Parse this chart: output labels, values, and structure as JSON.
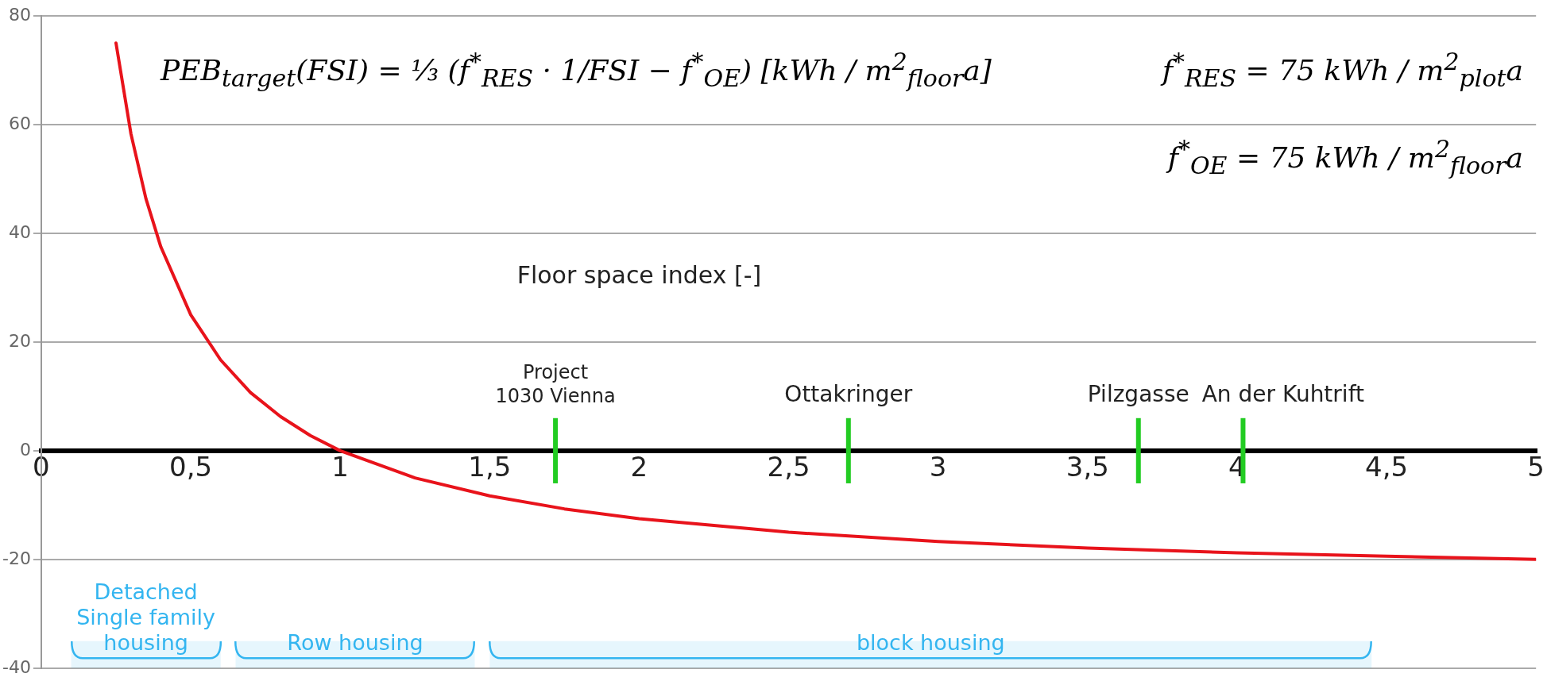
{
  "chart_data": {
    "type": "line",
    "xlabel": "Floor space index [-]",
    "series": [
      {
        "color": "#e8131b",
        "x": [
          0.25,
          0.3,
          0.35,
          0.4,
          0.5,
          0.6,
          0.7,
          0.8,
          0.9,
          1,
          1.25,
          1.5,
          1.75,
          2,
          2.5,
          3,
          3.5,
          4,
          4.5,
          5
        ],
        "values": [
          75,
          58.3,
          46.4,
          37.5,
          25,
          16.7,
          10.7,
          6.3,
          2.8,
          0,
          -5,
          -8.3,
          -10.7,
          -12.5,
          -15,
          -16.7,
          -17.9,
          -18.8,
          -19.4,
          -20
        ]
      }
    ],
    "xlim": [
      0,
      5
    ],
    "xticks": [
      0,
      {
        "value": 0.5,
        "label": "0,5"
      },
      1,
      {
        "value": 1.5,
        "label": "1,5"
      },
      2,
      {
        "value": 2.5,
        "label": "2,5"
      },
      3,
      {
        "value": 3.5,
        "label": "3,5"
      },
      4,
      {
        "value": 4.5,
        "label": "4,5"
      },
      5
    ],
    "ylim": [
      -40,
      80
    ],
    "yticks": [
      -40,
      -20,
      0,
      20,
      40,
      60,
      80
    ],
    "grid": "y",
    "legend": false,
    "marker": "none",
    "line_style": "solid",
    "ref_lines": [
      {
        "axis": "x",
        "value": 1.72,
        "label": "Project\n1030 Vienna",
        "color": "#22cc22"
      },
      {
        "axis": "x",
        "value": 2.7,
        "label": "Ottakringer",
        "color": "#22cc22"
      },
      {
        "axis": "x",
        "value": 3.67,
        "label": "Pilzgasse",
        "color": "#22cc22"
      },
      {
        "axis": "x",
        "value": 4.02,
        "label": "An der Kuhtrift",
        "color": "#22cc22"
      }
    ],
    "bands": [
      {
        "axis": "x",
        "from": 0.1,
        "to": 0.6,
        "label": "Detached\nSingle family\nhousing",
        "color": "#33b5f0"
      },
      {
        "axis": "x",
        "from": 0.65,
        "to": 1.45,
        "label": "Row housing",
        "color": "#33b5f0"
      },
      {
        "axis": "x",
        "from": 1.5,
        "to": 4.45,
        "label": "block housing",
        "color": "#33b5f0"
      }
    ],
    "annotations": [
      "PEB$_{target}$(FSI) = ⅓ (f$^{*}$$_{RES}$ · 1/FSI − f$^{*}$$_{OE}$)   [kWh / m$^{2}$$_{floor}$a]",
      "f$^{*}$$_{RES}$ = 75 kWh / m$^{2}$$_{plot}$a",
      "f$^{*}$$_{OE}$ = 75 kWh / m$^{2}$$_{floor}$a"
    ]
  }
}
